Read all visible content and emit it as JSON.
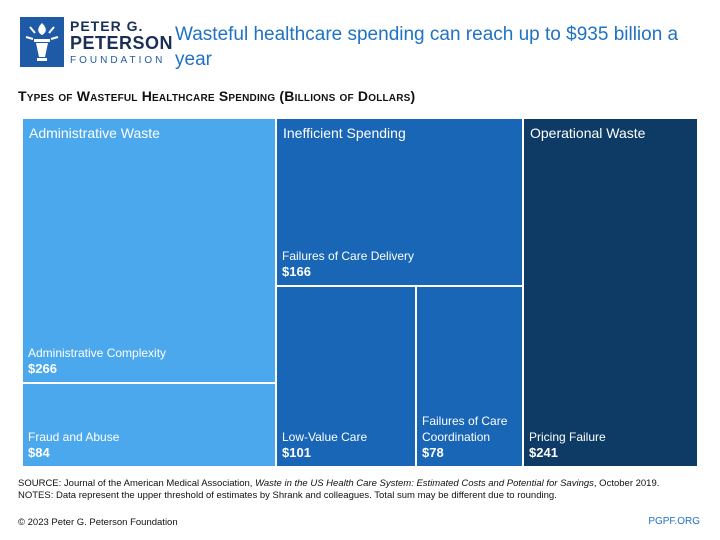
{
  "logo": {
    "line1": "PETER G.",
    "line2": "PETERSON",
    "line3": "FOUNDATION"
  },
  "headline": "Wasteful healthcare spending can reach up to $935 billion a year",
  "colors": {
    "administrative": "#4ba8ec",
    "inefficient": "#1866b5",
    "operational": "#0d3b66"
  },
  "chart_data": {
    "type": "treemap",
    "title": "Types of Wasteful Healthcare Spending (Billions of Dollars)",
    "groups": [
      {
        "name": "Administrative Waste",
        "color": "#4ba8ec",
        "items": [
          {
            "name": "Administrative Complexity",
            "value": 266,
            "value_label": "$266"
          },
          {
            "name": "Fraud and Abuse",
            "value": 84,
            "value_label": "$84"
          }
        ]
      },
      {
        "name": "Inefficient Spending",
        "color": "#1866b5",
        "items": [
          {
            "name": "Failures of Care Delivery",
            "value": 166,
            "value_label": "$166"
          },
          {
            "name": "Low-Value Care",
            "value": 101,
            "value_label": "$101"
          },
          {
            "name": "Failures of Care Coordination",
            "value": 78,
            "value_label": "$78"
          }
        ]
      },
      {
        "name": "Operational Waste",
        "color": "#0d3b66",
        "items": [
          {
            "name": "Pricing Failure",
            "value": 241,
            "value_label": "$241"
          }
        ]
      }
    ]
  },
  "footer": {
    "source_prefix": "SOURCE: Journal of the American Medical Association, ",
    "source_title": "Waste in the US Health Care System: Estimated Costs and Potential for Savings",
    "source_suffix": ", October 2019.",
    "notes": "NOTES: Data represent the upper threshold of estimates by Shrank and colleagues. Total sum may be different due to rounding.",
    "copyright": "© 2023 Peter G. Peterson Foundation",
    "site": "PGPF.ORG"
  }
}
